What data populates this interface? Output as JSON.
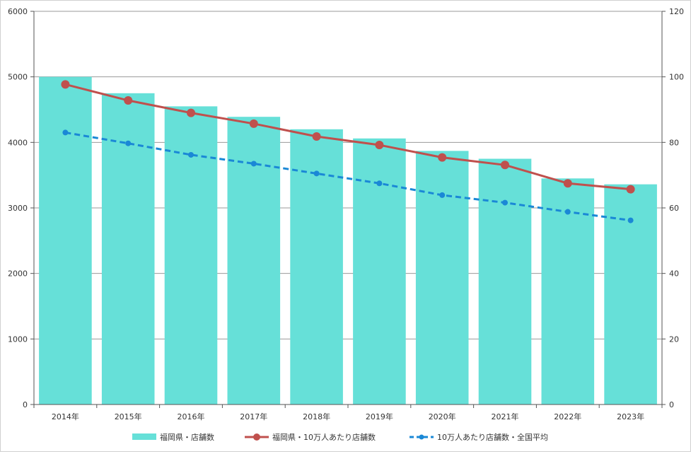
{
  "chart_data": {
    "type": "bar",
    "categories": [
      "2014年",
      "2015年",
      "2016年",
      "2017年",
      "2018年",
      "2019年",
      "2020年",
      "2021年",
      "2022年",
      "2023年"
    ],
    "series": [
      {
        "name": "福岡県・店舗数",
        "type": "bar",
        "axis": "left",
        "color": "#66e0d8",
        "values": [
          5000,
          4750,
          4550,
          4390,
          4200,
          4060,
          3870,
          3750,
          3450,
          3360
        ]
      },
      {
        "name": "福岡県・10万人あたり店舗数",
        "type": "line",
        "axis": "right",
        "color": "#c0504d",
        "values": [
          97.7,
          92.8,
          89.0,
          85.7,
          81.8,
          79.2,
          75.4,
          73.1,
          67.5,
          65.7
        ]
      },
      {
        "name": "10万人あたり店舗数・全国平均",
        "type": "line",
        "axis": "right",
        "style": "dashed",
        "color": "#1a88d6",
        "values": [
          83.0,
          79.7,
          76.2,
          73.5,
          70.5,
          67.5,
          63.9,
          61.6,
          58.8,
          56.2
        ]
      }
    ],
    "y_left": {
      "range": [
        0,
        6000
      ],
      "ticks": [
        "0",
        "1000",
        "2000",
        "3000",
        "4000",
        "5000",
        "6000"
      ]
    },
    "y_right": {
      "range": [
        0,
        120
      ],
      "ticks": [
        "0",
        "20",
        "40",
        "60",
        "80",
        "100",
        "120"
      ]
    },
    "grid": true,
    "legend_position": "bottom"
  }
}
